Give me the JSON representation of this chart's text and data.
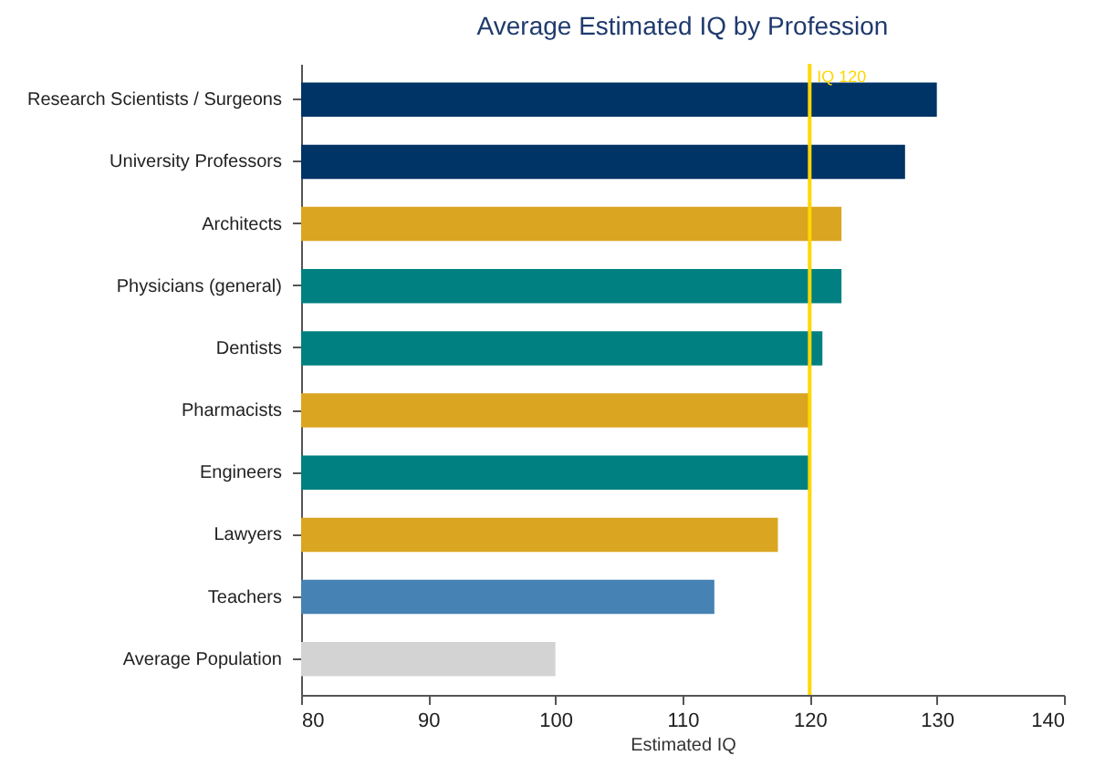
{
  "chart_data": {
    "type": "bar",
    "orientation": "horizontal",
    "title": "Average Estimated IQ by Profession",
    "xlabel": "Estimated IQ",
    "categories": [
      "Research Scientists / Surgeons",
      "University Professors",
      "Architects",
      "Physicians (general)",
      "Dentists",
      "Pharmacists",
      "Engineers",
      "Lawyers",
      "Teachers",
      "Average Population"
    ],
    "values": [
      130,
      127.5,
      122.5,
      122.5,
      121,
      120,
      120,
      117.5,
      112.5,
      100
    ],
    "colors": [
      "#003366",
      "#003366",
      "#daa520",
      "#008080",
      "#008080",
      "#daa520",
      "#008080",
      "#daa520",
      "#4682b4",
      "#d3d3d3"
    ],
    "xlim": [
      80,
      140
    ],
    "xticks": [
      80,
      90,
      100,
      110,
      120,
      130,
      140
    ],
    "grid": false,
    "ref_lines": [
      {
        "axis": "x",
        "value": 120,
        "label": "IQ 120",
        "color": "#ffd700"
      }
    ]
  }
}
